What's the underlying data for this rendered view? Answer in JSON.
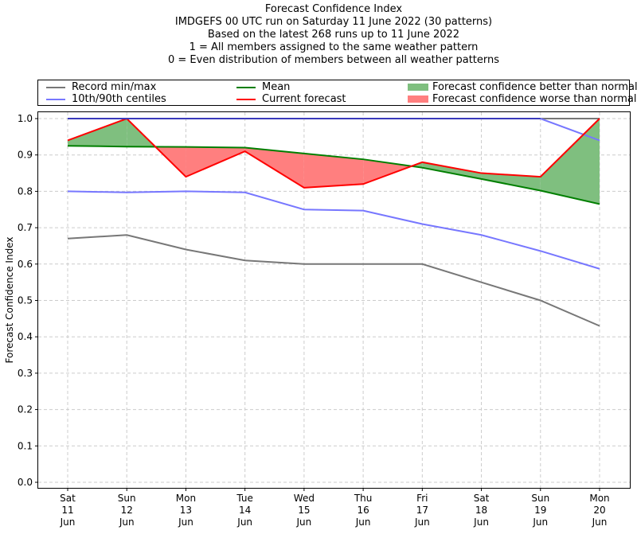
{
  "chart_data": {
    "type": "line",
    "title": "Forecast Confidence Index",
    "subtitles": [
      "IMDGEFS 00 UTC run on Saturday 11 June 2022 (30 patterns)",
      "Based on the latest 268 runs up to 11 June 2022",
      "1 = All members assigned to the same weather pattern",
      "0 = Even distribution of members between all weather patterns"
    ],
    "xlabel": "",
    "ylabel": "Forecast Confidence Index",
    "ylim": [
      0.0,
      1.0
    ],
    "yticks": [
      "0.0",
      "0.1",
      "0.2",
      "0.3",
      "0.4",
      "0.5",
      "0.6",
      "0.7",
      "0.8",
      "0.9",
      "1.0"
    ],
    "grid": true,
    "legend_position": "top",
    "categories": [
      [
        "Sat",
        "11",
        "Jun"
      ],
      [
        "Sun",
        "12",
        "Jun"
      ],
      [
        "Mon",
        "13",
        "Jun"
      ],
      [
        "Tue",
        "14",
        "Jun"
      ],
      [
        "Wed",
        "15",
        "Jun"
      ],
      [
        "Thu",
        "16",
        "Jun"
      ],
      [
        "Fri",
        "17",
        "Jun"
      ],
      [
        "Sat",
        "18",
        "Jun"
      ],
      [
        "Sun",
        "19",
        "Jun"
      ],
      [
        "Mon",
        "20",
        "Jun"
      ]
    ],
    "series": [
      {
        "name": "Record min",
        "legend": "Record min/max",
        "color": "#777777",
        "values": [
          0.67,
          0.68,
          0.64,
          0.61,
          0.6,
          0.6,
          0.6,
          0.55,
          0.5,
          0.43
        ]
      },
      {
        "name": "Record max",
        "legend": "Record min/max",
        "color": "#777777",
        "values": [
          1.0,
          1.0,
          1.0,
          1.0,
          1.0,
          1.0,
          1.0,
          1.0,
          1.0,
          1.0
        ]
      },
      {
        "name": "10th centile",
        "legend": "10th/90th centiles",
        "color": "#7777ff",
        "values": [
          0.8,
          0.797,
          0.8,
          0.797,
          0.75,
          0.747,
          0.71,
          0.68,
          0.636,
          0.587
        ]
      },
      {
        "name": "90th centile",
        "legend": "10th/90th centiles",
        "color": "#7777ff",
        "values": [
          1.0,
          1.0,
          1.0,
          1.0,
          1.0,
          1.0,
          1.0,
          1.0,
          1.0,
          0.94
        ]
      },
      {
        "name": "Mean",
        "legend": "Mean",
        "color": "#007f00",
        "values": [
          0.925,
          0.923,
          0.922,
          0.92,
          0.904,
          0.888,
          0.865,
          0.834,
          0.802,
          0.765
        ]
      },
      {
        "name": "Current forecast",
        "legend": "Current forecast",
        "color": "#ff0000",
        "values": [
          0.94,
          1.0,
          0.84,
          0.91,
          0.81,
          0.82,
          0.88,
          0.85,
          0.84,
          1.0
        ]
      }
    ],
    "fills": [
      {
        "name": "Forecast confidence better than normal",
        "color": "#7fbf7f",
        "condition": "current >= mean"
      },
      {
        "name": "Forecast confidence worse than normal",
        "color": "#ff7f7f",
        "condition": "current < mean"
      }
    ],
    "legend": [
      {
        "label": "Record min/max",
        "kind": "line",
        "color": "#777777"
      },
      {
        "label": "10th/90th centiles",
        "kind": "line",
        "color": "#7777ff"
      },
      {
        "label": "Mean",
        "kind": "line",
        "color": "#007f00"
      },
      {
        "label": "Current forecast",
        "kind": "line",
        "color": "#ff0000"
      },
      {
        "label": "Forecast confidence better than normal",
        "kind": "patch",
        "color": "#7fbf7f"
      },
      {
        "label": "Forecast confidence worse than normal",
        "kind": "patch",
        "color": "#ff7f7f"
      }
    ]
  }
}
